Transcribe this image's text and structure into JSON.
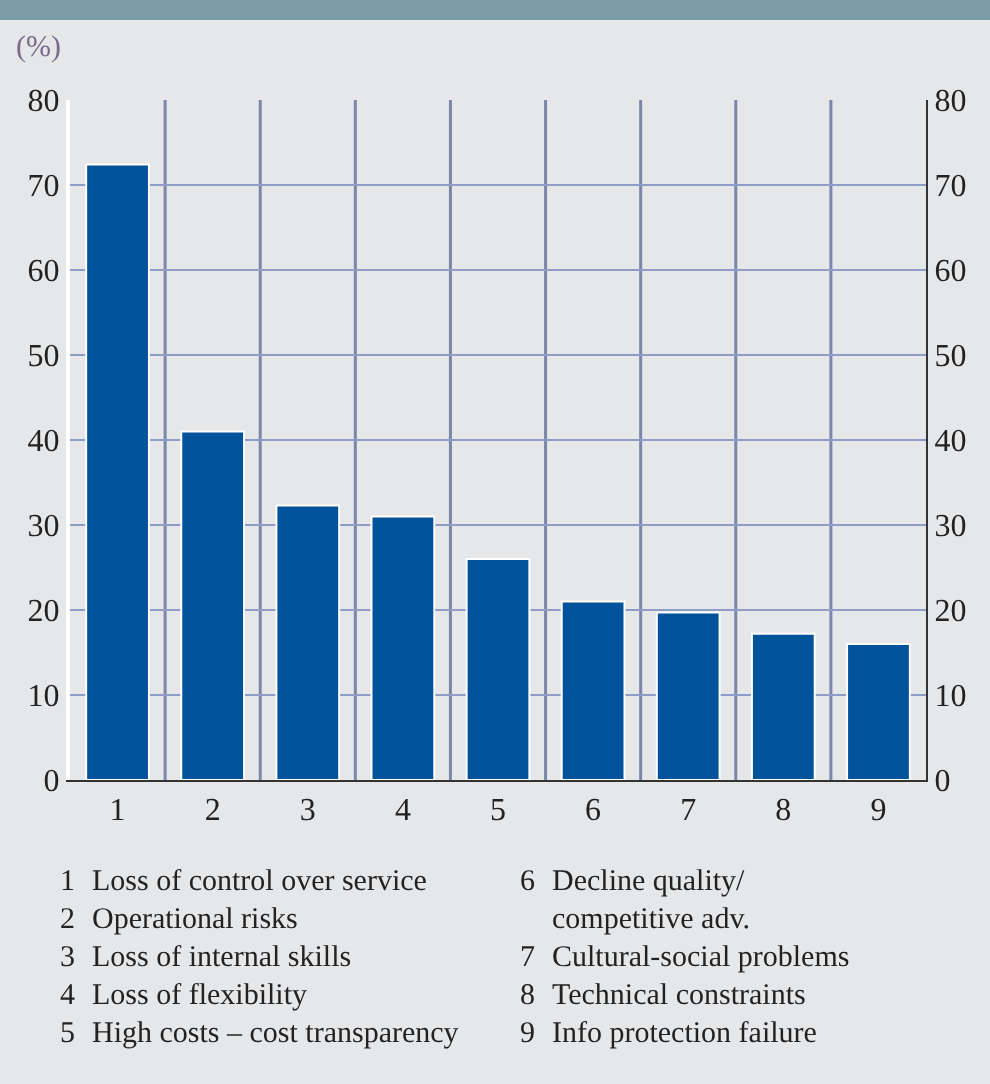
{
  "chart_data": {
    "type": "bar",
    "ylabel": "(%)",
    "categories": [
      "1",
      "2",
      "3",
      "4",
      "5",
      "6",
      "7",
      "8",
      "9"
    ],
    "values": [
      72.4,
      41,
      32.3,
      31,
      26,
      21,
      19.7,
      17.2,
      16
    ],
    "color": "#00529b",
    "ylim": [
      0,
      80
    ],
    "yticks": [
      0,
      10,
      20,
      30,
      40,
      50,
      60,
      70,
      80
    ],
    "y2lim": [
      0,
      80
    ],
    "y2ticks": [
      0,
      10,
      20,
      30,
      40,
      50,
      60,
      70,
      80
    ],
    "grid": true,
    "annotations": [
      "1 Loss of control over service",
      "2 Operational risks",
      "3 Loss of internal skills",
      "4 Loss of flexibility",
      "5 High costs – cost transparency",
      "6 Decline quality/ competitive adv.",
      "7 Cultural-social problems",
      "8 Technical constraints",
      "9 Info protection failure"
    ]
  }
}
